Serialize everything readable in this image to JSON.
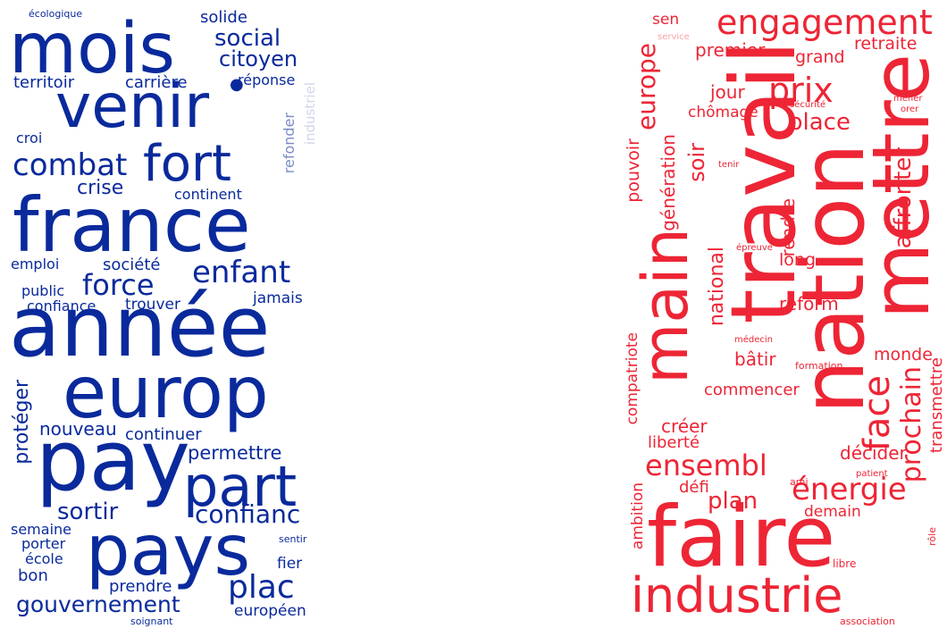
{
  "left_cloud": {
    "color": "#0a2a9c",
    "faded_color": "#d0d6e8",
    "words": {
      "ecologique": "écologique",
      "mois": "mois",
      "solide": "solide",
      "social": "social",
      "citoyen": "citoyen",
      "venir": "venir",
      "territoir": "territoir",
      "carriere": "carrière",
      "reponse": "réponse",
      "industriel": "industriel",
      "croi": "croi",
      "combat": "combat",
      "fort": "fort",
      "refonder": "refonder",
      "crise": "crise",
      "continent": "continent",
      "france": "france",
      "emploi": "emploi",
      "societe": "société",
      "enfant": "enfant",
      "force": "force",
      "public": "public",
      "jamais": "jamais",
      "confiance": "confiance",
      "trouver": "trouver",
      "annee": "année",
      "europ": "europ",
      "proteger": "protéger",
      "nouveau": "nouveau",
      "continuer": "continuer",
      "permettre": "permettre",
      "pay": "pay",
      "part": "part",
      "sortir": "sortir",
      "confianc": "confianc",
      "semaine": "semaine",
      "porter": "porter",
      "ecole": "école",
      "pays": "pays",
      "sentir": "sentir",
      "bon": "bon",
      "fier": "fier",
      "plac": "plac",
      "prendre": "prendre",
      "gouvernement": "gouvernement",
      "europeen": "européen",
      "soignant": "soignant"
    }
  },
  "right_cloud": {
    "color": "#ed2535",
    "faded_color": "#f6a3aa",
    "words": {
      "sen": "sen",
      "service": "service",
      "engagement": "engagement",
      "premier": "premier",
      "retraite": "retraite",
      "europe": "europe",
      "grand": "grand",
      "securite": "sécurité",
      "mener": "mener",
      "orer": "orer",
      "jour": "jour",
      "prix": "prix",
      "chomage": "chômage",
      "place": "place",
      "travail": "travail",
      "mettre": "mettre",
      "nation": "nation",
      "pouvoir": "pouvoir",
      "generation": "génération",
      "soir": "soir",
      "tenir": "tenir",
      "affronter": "affronter",
      "main": "main",
      "rendre": "rendre",
      "epreuve": "épreuve",
      "long": "long",
      "national": "national",
      "reform": "réform",
      "medecin": "médecin",
      "compatriote": "compatriote",
      "batir": "bâtir",
      "monde": "monde",
      "formation": "formation",
      "commencer": "commencer",
      "face": "face",
      "prochain": "prochain",
      "transmettre": "transmettre",
      "creer": "créer",
      "liberte": "liberté",
      "decider": "décider",
      "ensembl": "ensembl",
      "defi": "défi",
      "ami": "ami",
      "patient": "patient",
      "energie": "énergie",
      "plan": "plan",
      "demain": "demain",
      "ambition": "ambition",
      "faire": "faire",
      "role": "rôle",
      "libre": "libre",
      "industrie": "industrie",
      "association": "association"
    }
  }
}
